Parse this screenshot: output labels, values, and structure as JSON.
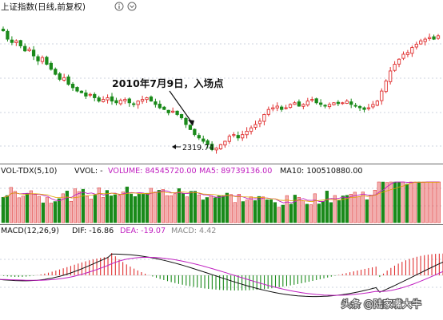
{
  "panel_main": {
    "title": "上证指数(日线,前复权)"
  },
  "annotation": {
    "text": "2010年7月9日，入场点",
    "low_label": "2319.74"
  },
  "panel_vol": {
    "title": "VOL-TDX(5,10)",
    "vvol": "VVOL: -",
    "volume": "VOLUME: 84545720.00",
    "ma5": "MA5: 89739136.00",
    "ma10": "MA10: 100510880.00"
  },
  "panel_macd": {
    "title": "MACD(12,26,9)",
    "dif": "DIF: -16.86",
    "dea": "DEA: -19.07",
    "macd": "MACD: 4.42"
  },
  "watermark": "头条 @陆家嘴大牛",
  "colors": {
    "up": "#e03030",
    "down": "#1a8a1a",
    "ma5": "#c020c0",
    "ma10": "#101010",
    "accent": "#000000"
  },
  "icons": {
    "info": "info-circle-icon",
    "dropdown": "chevron-down-icon"
  },
  "chart_data": [
    {
      "type": "candlestick",
      "x": [
        "2010-07-09"
      ],
      "series": [
        {
          "values": [
            2319.74
          ]
        }
      ],
      "annotations": [
        "2010年7月9日，入场点",
        "2319.74"
      ],
      "sketch_close": [
        3060,
        3010,
        2990,
        3000,
        2970,
        2940,
        2950,
        2910,
        2880,
        2900,
        2860,
        2830,
        2800,
        2770,
        2780,
        2740,
        2720,
        2700,
        2690,
        2670,
        2680,
        2660,
        2640,
        2650,
        2660,
        2640,
        2630,
        2645,
        2650,
        2630,
        2620,
        2640,
        2650,
        2660,
        2640,
        2620,
        2600,
        2590,
        2570,
        2580,
        2560,
        2540,
        2500,
        2470,
        2440,
        2420,
        2400,
        2380,
        2350,
        2360,
        2380,
        2400,
        2430,
        2440,
        2420,
        2440,
        2460,
        2480,
        2500,
        2520,
        2560,
        2590,
        2600,
        2610,
        2590,
        2600,
        2620,
        2630,
        2610,
        2620,
        2640,
        2650,
        2630,
        2620,
        2610,
        2620,
        2630,
        2625,
        2630,
        2640,
        2620,
        2610,
        2600,
        2590,
        2600,
        2620,
        2640,
        2700,
        2760,
        2820,
        2860,
        2890,
        2920,
        2930,
        2960,
        2980,
        3000,
        3010,
        3020,
        3010,
        3030
      ]
    },
    {
      "type": "bar",
      "title": "VOL-TDX(5,10)",
      "legend": [
        "VOLUME: 84545720.00",
        "MA5: 89739136.00",
        "MA10: 100510880.00"
      ]
    },
    {
      "type": "bar",
      "title": "MACD(12,26,9)",
      "legend": [
        "DIF: -16.86",
        "DEA: -19.07",
        "MACD: 4.42"
      ]
    }
  ]
}
